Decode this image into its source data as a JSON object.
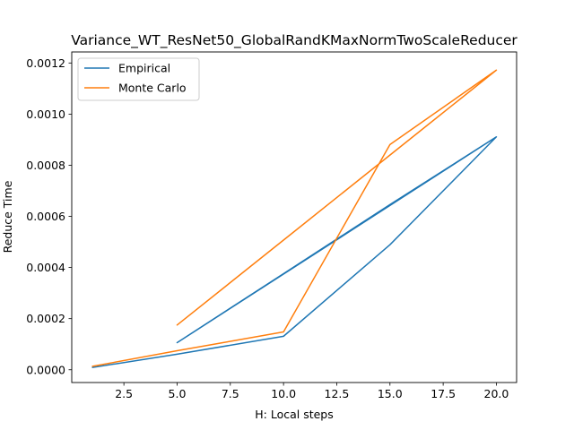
{
  "chart_data": {
    "type": "line",
    "title": "Variance_WT_ResNet50_GlobalRandKMaxNormTwoScaleReducer",
    "xlabel": "H: Local steps",
    "ylabel": "Reduce Time",
    "xlim": [
      0.05,
      20.95
    ],
    "ylim": [
      -4.99e-05,
      0.0012431
    ],
    "xticks": [
      2.5,
      5.0,
      7.5,
      10.0,
      12.5,
      15.0,
      17.5,
      20.0
    ],
    "xtick_labels": [
      "2.5",
      "5.0",
      "7.5",
      "10.0",
      "12.5",
      "15.0",
      "17.5",
      "20.0"
    ],
    "yticks": [
      0.0,
      0.0002,
      0.0004,
      0.0006,
      0.0008,
      0.001,
      0.0012
    ],
    "ytick_labels": [
      "0.0000",
      "0.0002",
      "0.0004",
      "0.0006",
      "0.0008",
      "0.0010",
      "0.0012"
    ],
    "grid": false,
    "legend_position": "upper-left",
    "series": [
      {
        "name": "Empirical",
        "color": "#1f77b4",
        "x": [
          1,
          5,
          10,
          15,
          20,
          5,
          10,
          15,
          20
        ],
        "y": [
          8.7e-06,
          6.08e-05,
          0.000131,
          0.000489,
          0.000911,
          0.000106,
          0.000376,
          0.000646,
          0.000911
        ]
      },
      {
        "name": "Monte Carlo",
        "color": "#ff7f0e",
        "x": [
          1,
          5,
          10,
          15,
          20,
          5,
          10,
          15,
          20
        ],
        "y": [
          1.31e-05,
          7.44e-05,
          0.000148,
          0.000881,
          0.001172,
          0.000175,
          0.000507,
          0.00084,
          0.001172
        ]
      }
    ]
  }
}
